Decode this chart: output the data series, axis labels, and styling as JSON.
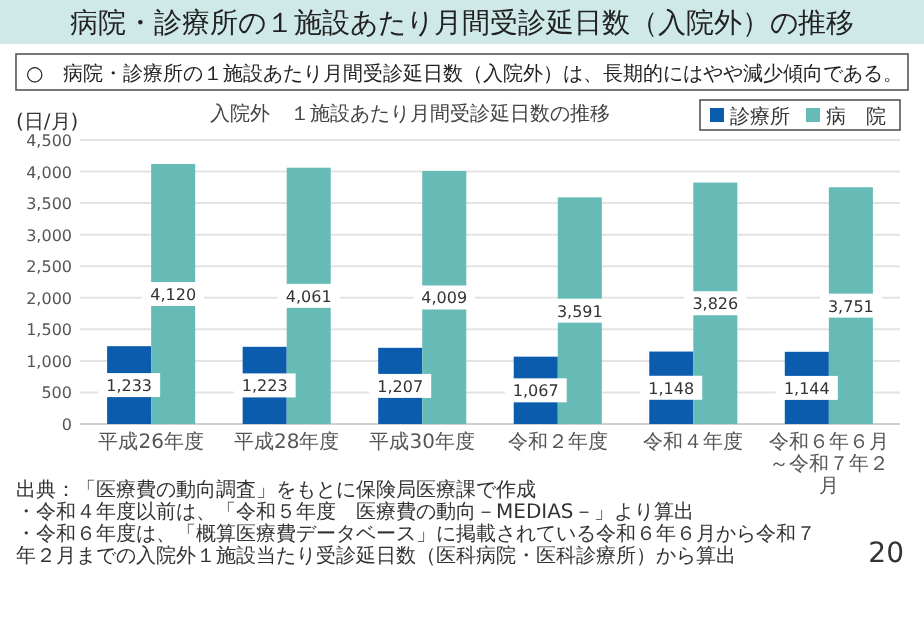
{
  "chart_data": {
    "type": "bar",
    "title": "病院・診療所の１施設あたり月間受診延日数（入院外）の推移",
    "subtitle": "○　病院・診療所の１施設あたり月間受診延日数（入院外）は、長期的にはやや減少傾向である。",
    "ylabel": "(日/月)",
    "categories": [
      "平成26年度",
      "平成28年度",
      "平成30年度",
      "令和２年度",
      "令和４年度",
      "令和６年６月～令和７年２月"
    ],
    "series": [
      {
        "name": "診療所",
        "color": "#0b5cad",
        "values": [
          1233,
          1223,
          1207,
          1067,
          1148,
          1144
        ],
        "value_labels": [
          "1,233",
          "1,223",
          "1,207",
          "1,067",
          "1,148",
          "1,144"
        ]
      },
      {
        "name": "病　院",
        "color": "#66bbb6",
        "values": [
          4120,
          4061,
          4009,
          3591,
          3826,
          3751
        ],
        "value_labels": [
          "4,120",
          "4,061",
          "4,009",
          "3,591",
          "3,826",
          "3,751"
        ]
      }
    ],
    "ylim": [
      0,
      4500
    ],
    "yticks": [
      0,
      {
        "value": 500,
        "label": "500"
      },
      {
        "value": 1000,
        "label": "1,000"
      },
      {
        "value": 1500,
        "label": "1,500"
      },
      {
        "value": 2000,
        "label": "2,000"
      },
      {
        "value": 2500,
        "label": "2,500"
      },
      {
        "value": 3000,
        "label": "3,000"
      },
      {
        "value": 3500,
        "label": "3,500"
      },
      {
        "value": 4000,
        "label": "4,000"
      },
      {
        "value": 4500,
        "label": "4,500"
      }
    ],
    "grid": "y",
    "legend": "top right",
    "annotations": [
      "入院外　１施設あたり月間受診延日数の推移",
      "出典：「医療費の動向調査」をもとに保険局医療課で作成",
      "・令和４年度以前は、「令和５年度　医療費の動向－MEDIAS－」より算出",
      "・令和６年度は、「概算医療費データベース」に掲載されている令和６年６月から令和７年２月までの入院外１施設当たり受診延日数（医科病院・医科診療所）から算出",
      "20"
    ]
  }
}
